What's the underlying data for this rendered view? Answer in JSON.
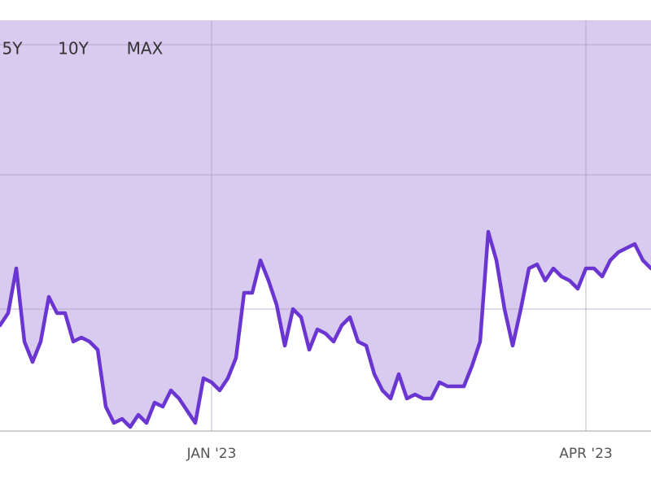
{
  "chart_data": {
    "type": "area-line",
    "categories": [
      null,
      null,
      null,
      null,
      null,
      null,
      null,
      null,
      null,
      null,
      null,
      null,
      null,
      null,
      null,
      null,
      null,
      null,
      null,
      null,
      null,
      null,
      null,
      null,
      null,
      null,
      "JAN '23",
      null,
      null,
      null,
      null,
      null,
      null,
      null,
      null,
      null,
      null,
      null,
      null,
      null,
      null,
      null,
      null,
      null,
      null,
      null,
      null,
      null,
      null,
      null,
      null,
      null,
      null,
      null,
      null,
      null,
      null,
      null,
      null,
      null,
      null,
      null,
      null,
      null,
      null,
      null,
      null,
      null,
      null,
      null,
      null,
      null,
      "APR '23",
      null,
      null,
      null,
      null,
      null,
      null,
      null,
      null
    ],
    "series": [
      {
        "color": "#6a35d0",
        "fill": "#d9cbf0",
        "values": [
          26,
          29,
          40,
          22,
          17,
          22,
          33,
          29,
          29,
          22,
          23,
          22,
          20,
          6,
          2,
          3,
          1,
          4,
          2,
          7,
          6,
          10,
          8,
          5,
          2,
          13,
          12,
          10,
          13,
          18,
          34,
          34,
          42,
          37,
          31,
          21,
          30,
          28,
          20,
          25,
          24,
          22,
          26,
          28,
          22,
          21,
          14,
          10,
          8,
          14,
          8,
          9,
          8,
          8,
          12,
          11,
          11,
          11,
          16,
          22,
          49,
          42,
          30,
          21,
          30,
          40,
          41,
          37,
          40,
          38,
          37,
          35,
          40,
          40,
          38,
          42,
          44,
          45,
          46,
          42,
          40
        ]
      }
    ],
    "ylim": [
      0,
      101
    ],
    "yticks": [
      0,
      30,
      63,
      95
    ],
    "grid": true
  },
  "controls": {
    "range_buttons": [
      "5Y",
      "10Y",
      "MAX"
    ]
  }
}
